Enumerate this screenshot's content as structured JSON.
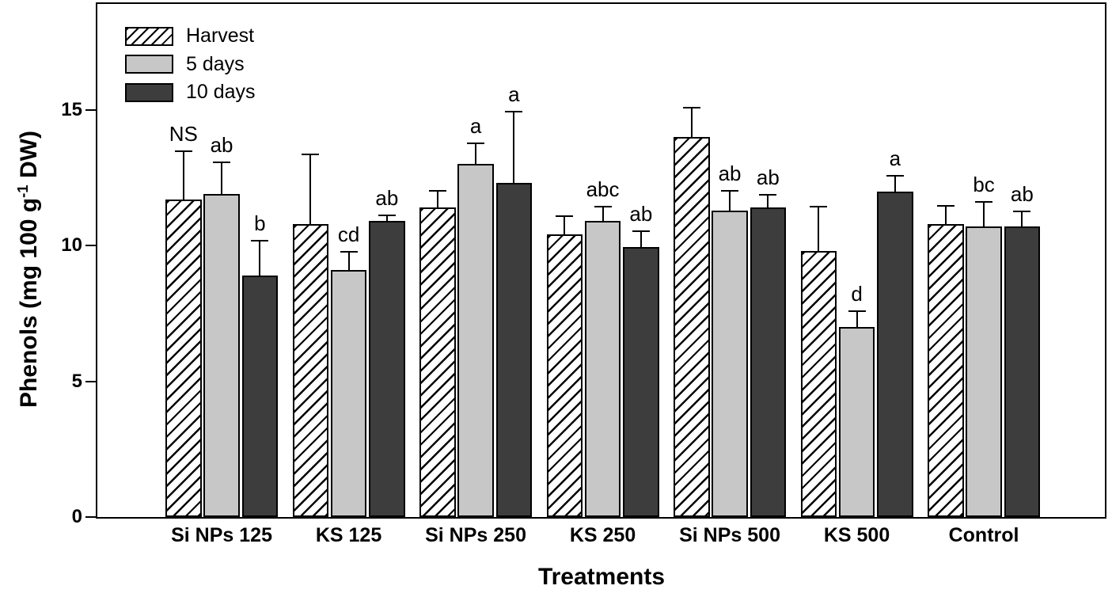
{
  "chart_data": {
    "type": "bar",
    "title": "",
    "xlabel": "Treatments",
    "ylabel": "Phenols (mg 100 g-1 DW)",
    "ylabel_parts": {
      "pre": "Phenols (mg 100 g",
      "sup": "-1",
      "post": " DW)"
    },
    "ylim": [
      0,
      18.9
    ],
    "yticks": [
      "0",
      "5",
      "10",
      "15"
    ],
    "ytick_values": [
      0,
      5,
      10,
      15
    ],
    "grid": "off",
    "legend_position": "top-left-inside",
    "categories": [
      "Si NPs 125",
      "KS 125",
      "Si NPs 250",
      "KS 250",
      "Si NPs 500",
      "KS 500",
      "Control"
    ],
    "series": [
      {
        "name": "Harvest",
        "fill": {
          "type": "hatch",
          "fg": "#000000",
          "bg": "#ffffff"
        },
        "values": [
          11.7,
          10.8,
          11.4,
          10.4,
          14.0,
          9.8,
          10.8
        ],
        "errors": [
          1.8,
          2.6,
          0.65,
          0.7,
          1.1,
          1.65,
          0.7
        ],
        "sig": [
          "NS",
          "",
          "",
          "",
          "",
          "",
          ""
        ]
      },
      {
        "name": "5 days",
        "fill": {
          "type": "solid",
          "color": "#c7c7c7"
        },
        "values": [
          11.9,
          9.1,
          13.0,
          10.9,
          11.3,
          7.0,
          10.7
        ],
        "errors": [
          1.2,
          0.7,
          0.8,
          0.55,
          0.75,
          0.6,
          0.95
        ],
        "sig": [
          "ab",
          "cd",
          "a",
          "abc",
          "ab",
          "d",
          "bc"
        ]
      },
      {
        "name": "10 days",
        "fill": {
          "type": "solid",
          "color": "#3d3d3d"
        },
        "values": [
          8.9,
          10.9,
          12.3,
          9.95,
          11.4,
          12.0,
          10.7
        ],
        "errors": [
          1.3,
          0.25,
          2.65,
          0.6,
          0.5,
          0.6,
          0.6
        ],
        "sig": [
          "b",
          "ab",
          "a",
          "ab",
          "ab",
          "a",
          "ab"
        ]
      }
    ],
    "colors": {
      "axis": "#000000",
      "bar_light": "#c7c7c7",
      "bar_dark": "#3d3d3d",
      "background": "#ffffff"
    }
  }
}
